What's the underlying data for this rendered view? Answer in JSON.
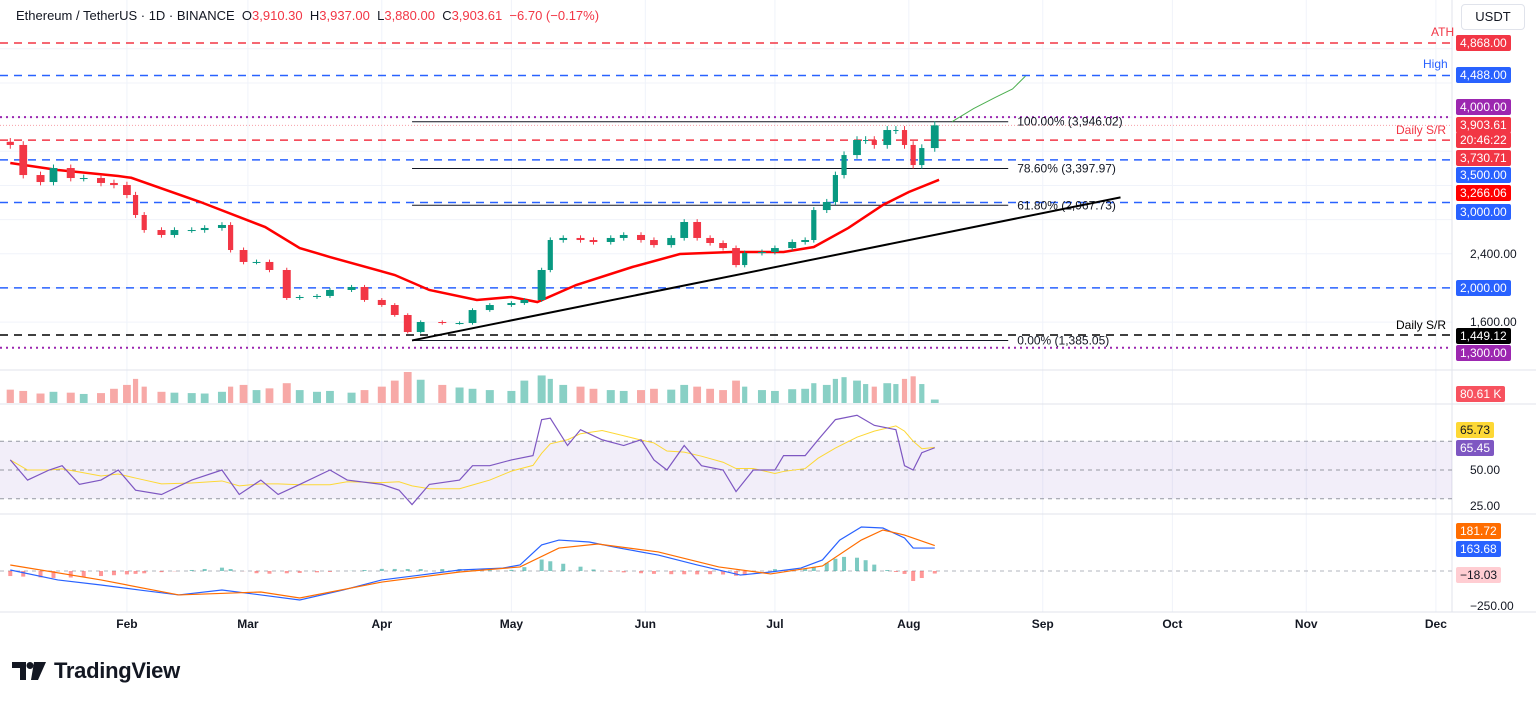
{
  "header": {
    "symbol": "Ethereum / TetherUS · 1D · BINANCE",
    "open_label": "O",
    "open": "3,910.30",
    "high_label": "H",
    "high": "3,937.00",
    "low_label": "L",
    "low": "3,880.00",
    "close_label": "C",
    "close": "3,903.61",
    "change": "−6.70 (−0.17%)"
  },
  "currency": "USDT",
  "colors": {
    "up": "#089981",
    "down": "#f23645",
    "sma": "#ff0000",
    "blue_level": "#2962ff",
    "purple_level": "#9c27b0",
    "rsi": "#7e57c2",
    "rsi_ma": "#fdd835",
    "macd": "#2962ff",
    "signal": "#ff6d00"
  },
  "annotations": {
    "ath": "ATH",
    "high": "High",
    "daily_sr_top": "Daily S/R",
    "daily_sr_bottom": "Daily S/R"
  },
  "price_labels": {
    "ath": "4,868.00",
    "high": "4,488.00",
    "p4000": "4,000.00",
    "last": "3,903.61",
    "countdown": "20:46:22",
    "sr": "3,730.71",
    "p3500": "3,500.00",
    "sma": "3,266.06",
    "p3000": "3,000.00",
    "t2400": "2,400.00",
    "p2000": "2,000.00",
    "t1600": "1,600.00",
    "sr_low": "1,449.12",
    "p1300": "1,300.00",
    "volume": "80.61 K",
    "rsi_ma": "65.73",
    "rsi": "65.45",
    "rsi50": "50.00",
    "rsi25": "25.00",
    "signal": "181.72",
    "macd": "163.68",
    "hist": "−18.03",
    "macd_m250": "−250.00"
  },
  "time_labels": [
    "Feb",
    "Mar",
    "Apr",
    "May",
    "Jun",
    "Jul",
    "Aug",
    "Sep",
    "Oct",
    "Nov",
    "Dec"
  ],
  "brand": "TradingView",
  "chart_data": {
    "type": "candlestick",
    "interval": "1D",
    "ylim": [
      1250,
      4950
    ],
    "levels": [
      {
        "value": 4868.0,
        "style": "dashed",
        "color": "#f23645",
        "label": "ATH"
      },
      {
        "value": 4488.0,
        "style": "dashed",
        "color": "#2962ff",
        "label": "High"
      },
      {
        "value": 4000.0,
        "style": "dotted",
        "color": "#9c27b0"
      },
      {
        "value": 3730.71,
        "style": "dashed",
        "color": "#f23645",
        "label": "Daily S/R"
      },
      {
        "value": 3500.0,
        "style": "dashed",
        "color": "#2962ff"
      },
      {
        "value": 3000.0,
        "style": "dashed",
        "color": "#2962ff"
      },
      {
        "value": 2000.0,
        "style": "dashed",
        "color": "#2962ff"
      },
      {
        "value": 1449.12,
        "style": "dashed",
        "color": "#000000",
        "label": "Daily S/R"
      },
      {
        "value": 1300.0,
        "style": "dotted",
        "color": "#9c27b0"
      }
    ],
    "fib": {
      "from": "04-08",
      "to": "08-24",
      "levels": [
        {
          "label": "100.00% (3,946.02)",
          "value": 3946.02
        },
        {
          "label": "78.60% (3,397.97)",
          "value": 3397.97
        },
        {
          "label": "61.80% (2,967.73)",
          "value": 2967.73
        },
        {
          "label": "0.00% (1,385.05)",
          "value": 1385.05
        }
      ]
    },
    "trendline": [
      {
        "date": "04-08",
        "value": 1385
      },
      {
        "date": "09-19",
        "value": 3060
      }
    ],
    "projection": [
      {
        "date": "08-11",
        "value": 3946
      },
      {
        "date": "08-16",
        "value": 4100
      },
      {
        "date": "08-21",
        "value": 4230
      },
      {
        "date": "08-25",
        "value": 4330
      },
      {
        "date": "08-28",
        "value": 4480
      }
    ],
    "closes": [
      [
        "01-05",
        3674
      ],
      [
        "01-08",
        3322
      ],
      [
        "01-12",
        3240
      ],
      [
        "01-15",
        3404
      ],
      [
        "01-19",
        3287
      ],
      [
        "01-22",
        3287
      ],
      [
        "01-26",
        3229
      ],
      [
        "01-29",
        3205
      ],
      [
        "02-01",
        3088
      ],
      [
        "02-03",
        2854
      ],
      [
        "02-05",
        2678
      ],
      [
        "02-09",
        2620
      ],
      [
        "02-12",
        2678
      ],
      [
        "02-16",
        2678
      ],
      [
        "02-19",
        2702
      ],
      [
        "02-23",
        2737
      ],
      [
        "02-25",
        2444
      ],
      [
        "02-28",
        2304
      ],
      [
        "03-03",
        2304
      ],
      [
        "03-06",
        2210
      ],
      [
        "03-10",
        1882
      ],
      [
        "03-13",
        1894
      ],
      [
        "03-17",
        1906
      ],
      [
        "03-20",
        1976
      ],
      [
        "03-25",
        2011
      ],
      [
        "03-28",
        1859
      ],
      [
        "04-01",
        1800
      ],
      [
        "04-04",
        1683
      ],
      [
        "04-07",
        1484
      ],
      [
        "04-10",
        1601
      ],
      [
        "04-15",
        1589
      ],
      [
        "04-19",
        1589
      ],
      [
        "04-22",
        1741
      ],
      [
        "04-26",
        1800
      ],
      [
        "05-01",
        1823
      ],
      [
        "05-04",
        1859
      ],
      [
        "05-08",
        2210
      ],
      [
        "05-10",
        2561
      ],
      [
        "05-13",
        2585
      ],
      [
        "05-17",
        2561
      ],
      [
        "05-20",
        2538
      ],
      [
        "05-24",
        2585
      ],
      [
        "05-27",
        2620
      ],
      [
        "05-31",
        2561
      ],
      [
        "06-03",
        2502
      ],
      [
        "06-07",
        2585
      ],
      [
        "06-10",
        2772
      ],
      [
        "06-13",
        2585
      ],
      [
        "06-16",
        2526
      ],
      [
        "06-19",
        2467
      ],
      [
        "06-22",
        2268
      ],
      [
        "06-24",
        2409
      ],
      [
        "06-28",
        2421
      ],
      [
        "07-01",
        2467
      ],
      [
        "07-05",
        2538
      ],
      [
        "07-08",
        2561
      ],
      [
        "07-10",
        2912
      ],
      [
        "07-13",
        3006
      ],
      [
        "07-15",
        3322
      ],
      [
        "07-17",
        3556
      ],
      [
        "07-20",
        3732
      ],
      [
        "07-22",
        3732
      ],
      [
        "07-24",
        3674
      ],
      [
        "07-27",
        3849
      ],
      [
        "07-29",
        3849
      ],
      [
        "07-31",
        3674
      ],
      [
        "08-02",
        3439
      ],
      [
        "08-04",
        3638
      ],
      [
        "08-07",
        3903.61
      ]
    ],
    "sma50": [
      [
        "01-05",
        3463
      ],
      [
        "01-16",
        3381
      ],
      [
        "01-30",
        3310
      ],
      [
        "02-02",
        3290
      ],
      [
        "02-18",
        3006
      ],
      [
        "03-05",
        2713
      ],
      [
        "03-13",
        2467
      ],
      [
        "03-20",
        2362
      ],
      [
        "04-04",
        2151
      ],
      [
        "04-12",
        1976
      ],
      [
        "04-23",
        1859
      ],
      [
        "05-01",
        1894
      ],
      [
        "05-07",
        1835
      ],
      [
        "05-16",
        2034
      ],
      [
        "05-29",
        2245
      ],
      [
        "06-09",
        2397
      ],
      [
        "06-21",
        2421
      ],
      [
        "07-03",
        2421
      ],
      [
        "07-10",
        2479
      ],
      [
        "07-18",
        2702
      ],
      [
        "07-26",
        2971
      ],
      [
        "08-01",
        3123
      ],
      [
        "08-08",
        3266.06
      ]
    ],
    "volume_k": [
      310,
      280,
      220,
      260,
      240,
      210,
      230,
      330,
      420,
      560,
      380,
      260,
      240,
      230,
      220,
      260,
      380,
      420,
      300,
      340,
      460,
      300,
      260,
      280,
      240,
      300,
      380,
      520,
      720,
      540,
      420,
      360,
      330,
      300,
      280,
      520,
      640,
      560,
      420,
      380,
      330,
      300,
      280,
      300,
      330,
      310,
      420,
      380,
      330,
      300,
      520,
      380,
      300,
      280,
      320,
      330,
      460,
      420,
      560,
      600,
      520,
      440,
      380,
      460,
      440,
      560,
      620,
      440,
      80.61
    ],
    "rsi": [
      [
        "01-05",
        57
      ],
      [
        "01-09",
        43
      ],
      [
        "01-14",
        50
      ],
      [
        "01-17",
        53
      ],
      [
        "01-21",
        40
      ],
      [
        "01-26",
        43
      ],
      [
        "01-30",
        50
      ],
      [
        "02-03",
        36
      ],
      [
        "02-09",
        33
      ],
      [
        "02-16",
        43
      ],
      [
        "02-23",
        50
      ],
      [
        "02-27",
        33
      ],
      [
        "03-04",
        43
      ],
      [
        "03-08",
        33
      ],
      [
        "03-13",
        40
      ],
      [
        "03-20",
        50
      ],
      [
        "03-24",
        43
      ],
      [
        "04-01",
        40
      ],
      [
        "04-05",
        36
      ],
      [
        "04-08",
        26
      ],
      [
        "04-12",
        40
      ],
      [
        "04-19",
        43
      ],
      [
        "04-22",
        53
      ],
      [
        "04-26",
        53
      ],
      [
        "05-01",
        57
      ],
      [
        "05-06",
        60
      ],
      [
        "05-08",
        85
      ],
      [
        "05-10",
        86
      ],
      [
        "05-14",
        67
      ],
      [
        "05-17",
        78
      ],
      [
        "05-22",
        71
      ],
      [
        "05-27",
        67
      ],
      [
        "05-31",
        71
      ],
      [
        "06-03",
        57
      ],
      [
        "06-06",
        50
      ],
      [
        "06-10",
        67
      ],
      [
        "06-14",
        53
      ],
      [
        "06-19",
        50
      ],
      [
        "06-22",
        35
      ],
      [
        "06-26",
        50
      ],
      [
        "07-01",
        50
      ],
      [
        "07-03",
        60
      ],
      [
        "07-08",
        60
      ],
      [
        "07-11",
        71
      ],
      [
        "07-15",
        85
      ],
      [
        "07-20",
        88
      ],
      [
        "07-24",
        81
      ],
      [
        "07-29",
        78
      ],
      [
        "07-31",
        53
      ],
      [
        "08-02",
        50
      ],
      [
        "08-04",
        62
      ],
      [
        "08-07",
        65.45
      ]
    ],
    "rsi_ma_last": 65.73,
    "macd": [
      [
        "01-05",
        7
      ],
      [
        "01-16",
        -64
      ],
      [
        "01-26",
        -100
      ],
      [
        "02-04",
        -136
      ],
      [
        "02-13",
        -171
      ],
      [
        "02-23",
        -136
      ],
      [
        "03-04",
        -171
      ],
      [
        "03-13",
        -207
      ],
      [
        "03-23",
        -136
      ],
      [
        "04-01",
        -64
      ],
      [
        "04-10",
        -29
      ],
      [
        "04-19",
        7
      ],
      [
        "04-29",
        21
      ],
      [
        "05-03",
        43
      ],
      [
        "05-08",
        186
      ],
      [
        "05-12",
        221
      ],
      [
        "05-19",
        207
      ],
      [
        "05-26",
        164
      ],
      [
        "06-04",
        114
      ],
      [
        "06-13",
        43
      ],
      [
        "06-23",
        -29
      ],
      [
        "06-30",
        -7
      ],
      [
        "07-07",
        21
      ],
      [
        "07-12",
        79
      ],
      [
        "07-16",
        221
      ],
      [
        "07-21",
        314
      ],
      [
        "07-26",
        307
      ],
      [
        "07-31",
        236
      ],
      [
        "08-02",
        164
      ],
      [
        "08-07",
        163.68
      ]
    ],
    "signal": [
      [
        "01-05",
        43
      ],
      [
        "01-26",
        -64
      ],
      [
        "02-13",
        -171
      ],
      [
        "03-04",
        -150
      ],
      [
        "03-13",
        -193
      ],
      [
        "04-01",
        -79
      ],
      [
        "04-19",
        -7
      ],
      [
        "05-03",
        29
      ],
      [
        "05-12",
        164
      ],
      [
        "05-21",
        193
      ],
      [
        "06-04",
        136
      ],
      [
        "06-18",
        29
      ],
      [
        "06-30",
        -21
      ],
      [
        "07-12",
        36
      ],
      [
        "07-21",
        221
      ],
      [
        "07-26",
        293
      ],
      [
        "07-31",
        257
      ],
      [
        "08-07",
        181.72
      ]
    ],
    "hist_last": -18.03
  }
}
